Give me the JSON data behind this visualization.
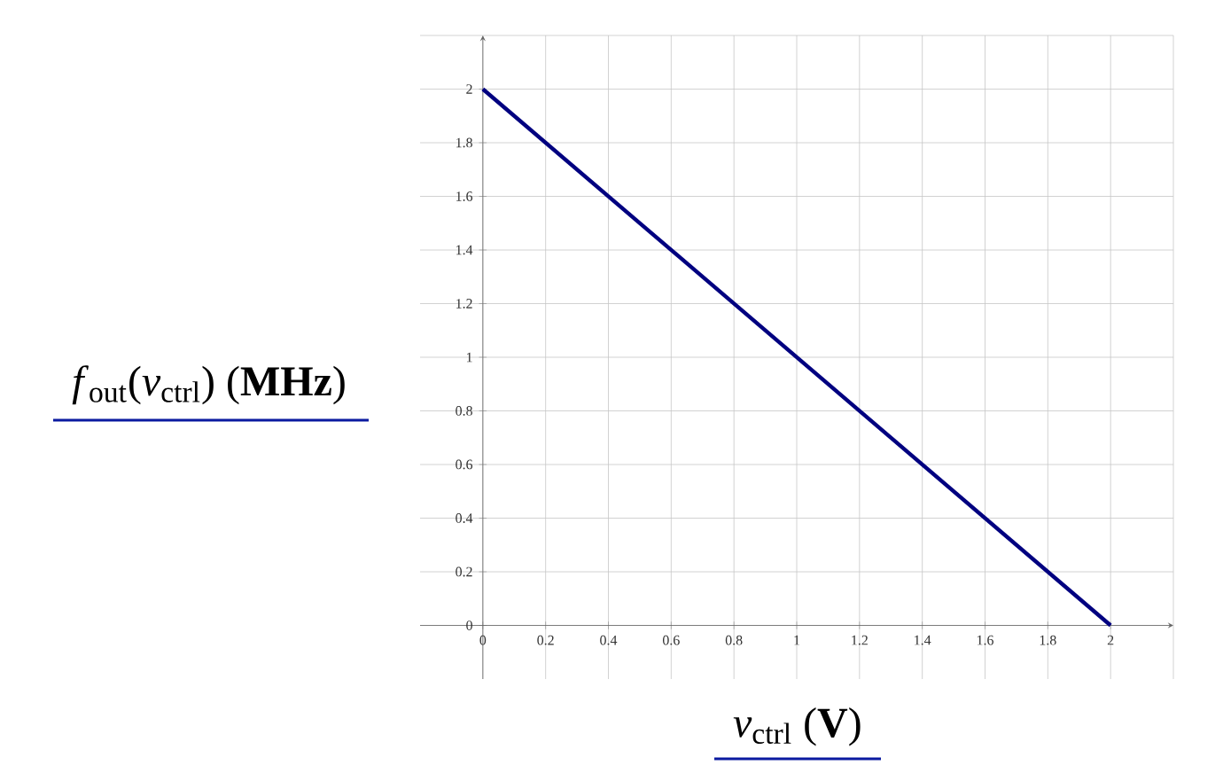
{
  "chart_data": {
    "type": "line",
    "xlabel": "*v*$_{ctrl}$  (**V**)",
    "ylabel": "*f*$_{out}$(*v*$_{ctrl}$)  (**MHz**)",
    "series": [
      {
        "color": "#000080",
        "x": [
          0,
          2
        ],
        "values": [
          2,
          0
        ]
      }
    ],
    "xlim": [
      -0.2,
      2.2
    ],
    "ylim": [
      -0.2,
      2.2
    ],
    "xticks": [
      0,
      0.2,
      0.4,
      0.6,
      0.8,
      1,
      1.2,
      1.4,
      1.6,
      1.8,
      2
    ],
    "yticks": [
      0,
      0.2,
      0.4,
      0.6,
      0.8,
      1,
      1.2,
      1.4,
      1.6,
      1.8,
      2
    ],
    "grid": true,
    "marker": "none",
    "line_style": "solid"
  }
}
